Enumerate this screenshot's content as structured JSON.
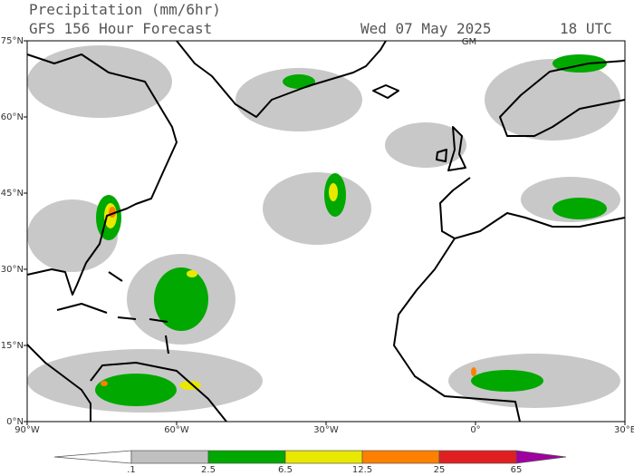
{
  "header": {
    "title": "Precipitation (mm/6hr)",
    "subtitle": "GFS 156 Hour Forecast",
    "date": "Wed 07 May 2025",
    "time": "18 UTC"
  },
  "map": {
    "lonlim": [
      -90,
      30
    ],
    "latlim": [
      0,
      75
    ],
    "meridian_label": "GM",
    "lat_ticks": [
      {
        "value": 0,
        "label": "0°N"
      },
      {
        "value": 15,
        "label": "15°N"
      },
      {
        "value": 30,
        "label": "30°N"
      },
      {
        "value": 45,
        "label": "45°N"
      },
      {
        "value": 60,
        "label": "60°N"
      },
      {
        "value": 75,
        "label": "75°N"
      }
    ],
    "lon_ticks": [
      {
        "value": -90,
        "label": "90°W"
      },
      {
        "value": -60,
        "label": "60°W"
      },
      {
        "value": -30,
        "label": "30°W"
      },
      {
        "value": 0,
        "label": "0°"
      },
      {
        "value": 30,
        "label": "30°E"
      }
    ]
  },
  "colorbar": {
    "levels": [
      {
        "value": 0.1,
        "label": ".1"
      },
      2.5,
      6.5,
      12.5,
      25,
      65
    ],
    "colors": [
      "#ffffff",
      "#c0c0c0",
      "#00a800",
      "#e8e800",
      "#ff8000",
      "#e02020",
      "#a000a0"
    ]
  }
}
